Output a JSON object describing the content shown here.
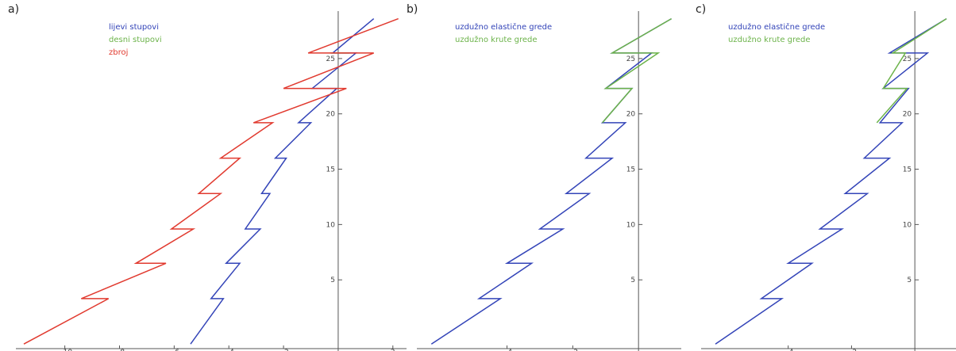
{
  "colors": {
    "blue": "#3344b8",
    "green": "#6cb34a",
    "red": "#e13a2f",
    "axis": "#555555"
  },
  "chart_data": [
    {
      "type": "line",
      "label": "a)",
      "xlim": [
        -11.5,
        2.5
      ],
      "ylim": [
        -1,
        29
      ],
      "x_ticks": [
        -10,
        -8,
        -6,
        -4,
        -2,
        2
      ],
      "y_ticks": [
        5,
        10,
        15,
        20,
        25
      ],
      "legend_position": "top-left",
      "series": [
        {
          "name": "lijevi stupovi",
          "color": "blue",
          "points": [
            [
              -5.4,
              -0.8
            ],
            [
              -4.2,
              3.3
            ],
            [
              -4.65,
              3.3
            ],
            [
              -3.6,
              6.5
            ],
            [
              -4.1,
              6.5
            ],
            [
              -2.85,
              9.6
            ],
            [
              -3.4,
              9.6
            ],
            [
              -2.5,
              12.8
            ],
            [
              -2.8,
              12.8
            ],
            [
              -1.9,
              16
            ],
            [
              -2.3,
              16
            ],
            [
              -1.0,
              19.2
            ],
            [
              -1.45,
              19.2
            ],
            [
              -0.05,
              22.3
            ],
            [
              -0.95,
              22.3
            ],
            [
              0.65,
              25.5
            ],
            [
              -0.2,
              25.5
            ],
            [
              1.3,
              28.6
            ]
          ]
        },
        {
          "name": "desni stupovi",
          "color": "green",
          "points": [
            [
              -0.3,
              25.5
            ],
            [
              0.4,
              25.5
            ]
          ]
        },
        {
          "name": "zbroj",
          "color": "red",
          "points": [
            [
              -11.5,
              -0.8
            ],
            [
              -8.4,
              3.3
            ],
            [
              -9.4,
              3.3
            ],
            [
              -6.3,
              6.5
            ],
            [
              -7.4,
              6.5
            ],
            [
              -5.3,
              9.6
            ],
            [
              -6.1,
              9.6
            ],
            [
              -4.3,
              12.8
            ],
            [
              -5.1,
              12.8
            ],
            [
              -3.6,
              16
            ],
            [
              -4.3,
              16
            ],
            [
              -2.4,
              19.2
            ],
            [
              -3.1,
              19.2
            ],
            [
              0.3,
              22.3
            ],
            [
              -2.0,
              22.3
            ],
            [
              1.3,
              25.5
            ],
            [
              -1.1,
              25.5
            ],
            [
              2.2,
              28.6
            ]
          ]
        }
      ]
    },
    {
      "type": "line",
      "label": "b)",
      "xlim": [
        -6.5,
        1.3
      ],
      "ylim": [
        -1,
        29
      ],
      "x_ticks": [
        -4,
        -2
      ],
      "y_ticks": [
        5,
        10,
        15,
        20,
        25
      ],
      "legend_position": "top-left",
      "series": [
        {
          "name": "uzdužno elastične grede",
          "color": "blue",
          "points": [
            [
              -6.3,
              -0.8
            ],
            [
              -4.2,
              3.3
            ],
            [
              -4.85,
              3.3
            ],
            [
              -3.25,
              6.5
            ],
            [
              -4.0,
              6.5
            ],
            [
              -2.3,
              9.6
            ],
            [
              -3.0,
              9.6
            ],
            [
              -1.5,
              12.8
            ],
            [
              -2.2,
              12.8
            ],
            [
              -0.8,
              16
            ],
            [
              -1.6,
              16
            ],
            [
              -0.4,
              19.2
            ],
            [
              -1.1,
              19.2
            ],
            [
              -0.2,
              22.3
            ],
            [
              -1.0,
              22.3
            ],
            [
              0.4,
              25.5
            ],
            [
              -0.8,
              25.5
            ],
            [
              1.0,
              28.6
            ]
          ]
        },
        {
          "name": "uzdužno krute grede",
          "color": "green",
          "points": [
            [
              -1.1,
              19.2
            ],
            [
              -0.2,
              22.3
            ],
            [
              -1.0,
              22.3
            ],
            [
              0.6,
              25.5
            ],
            [
              -0.8,
              25.5
            ],
            [
              1.0,
              28.6
            ]
          ]
        }
      ]
    },
    {
      "type": "line",
      "label": "c)",
      "xlim": [
        -6.5,
        1.3
      ],
      "ylim": [
        -1,
        29
      ],
      "x_ticks": [
        -4,
        -2
      ],
      "y_ticks": [
        5,
        10,
        15,
        20,
        25
      ],
      "legend_position": "top-left",
      "series": [
        {
          "name": "uzdužno elastične grede",
          "color": "blue",
          "points": [
            [
              -6.3,
              -0.8
            ],
            [
              -4.2,
              3.3
            ],
            [
              -4.85,
              3.3
            ],
            [
              -3.25,
              6.5
            ],
            [
              -4.0,
              6.5
            ],
            [
              -2.3,
              9.6
            ],
            [
              -3.0,
              9.6
            ],
            [
              -1.5,
              12.8
            ],
            [
              -2.2,
              12.8
            ],
            [
              -0.8,
              16
            ],
            [
              -1.6,
              16
            ],
            [
              -0.4,
              19.2
            ],
            [
              -1.1,
              19.2
            ],
            [
              -0.2,
              22.3
            ],
            [
              -1.0,
              22.3
            ],
            [
              0.4,
              25.5
            ],
            [
              -0.8,
              25.5
            ],
            [
              1.0,
              28.6
            ]
          ]
        },
        {
          "name": "uzdužno krute grede",
          "color": "green",
          "points": [
            [
              -1.2,
              19.2
            ],
            [
              -0.25,
              22.3
            ],
            [
              -1.0,
              22.3
            ],
            [
              -0.3,
              25.5
            ],
            [
              -0.7,
              25.5
            ],
            [
              1.0,
              28.6
            ]
          ]
        }
      ]
    }
  ]
}
